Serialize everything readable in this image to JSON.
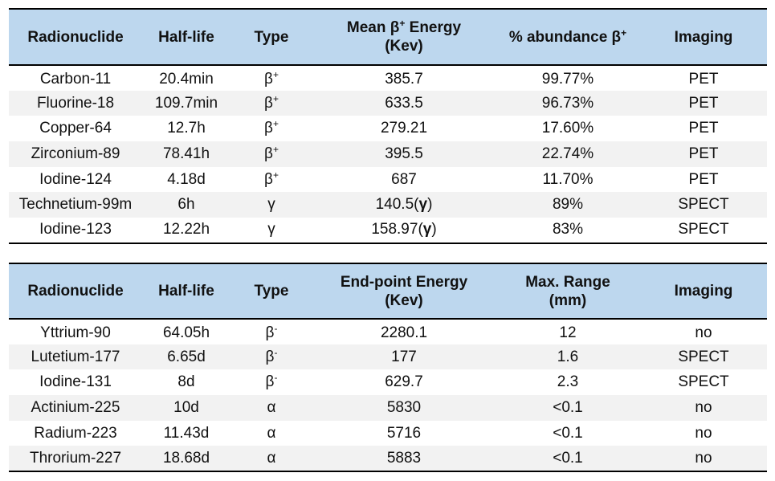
{
  "pet_table": {
    "headers": {
      "radionuclide": "Radionuclide",
      "half_life": "Half-life",
      "type": "Type",
      "energy_line1": "Mean β",
      "energy_sup": "+",
      "energy_line1_suffix": " Energy",
      "energy_line2": "(Kev)",
      "abundance": "% abundance β",
      "abundance_sup": "+",
      "imaging": "Imaging"
    },
    "rows": [
      {
        "nuclide": "Carbon-11",
        "half_life": "20.4min",
        "type": "β",
        "type_sup": "+",
        "energy": "385.7",
        "energy_suffix": "",
        "abundance": "99.77%",
        "imaging": "PET"
      },
      {
        "nuclide": "Fluorine-18",
        "half_life": "109.7min",
        "type": "β",
        "type_sup": "+",
        "energy": "633.5",
        "energy_suffix": "",
        "abundance": "96.73%",
        "imaging": "PET"
      },
      {
        "nuclide": "Copper-64",
        "half_life": "12.7h",
        "type": "β",
        "type_sup": "+",
        "energy": "279.21",
        "energy_suffix": "",
        "abundance": "17.60%",
        "imaging": "PET"
      },
      {
        "nuclide": "Zirconium-89",
        "half_life": "78.41h",
        "type": "β",
        "type_sup": "+",
        "energy": "395.5",
        "energy_suffix": "",
        "abundance": "22.74%",
        "imaging": "PET"
      },
      {
        "nuclide": "Iodine-124",
        "half_life": "4.18d",
        "type": "β",
        "type_sup": "+",
        "energy": "687",
        "energy_suffix": "",
        "abundance": "11.70%",
        "imaging": "PET"
      },
      {
        "nuclide": "Technetium-99m",
        "half_life": "6h",
        "type": "γ",
        "type_sup": "",
        "energy": "140.5",
        "energy_suffix": "γ",
        "abundance": "89%",
        "imaging": "SPECT"
      },
      {
        "nuclide": "Iodine-123",
        "half_life": "12.22h",
        "type": "γ",
        "type_sup": "",
        "energy": "158.97",
        "energy_suffix": "γ",
        "abundance": "83%",
        "imaging": "SPECT"
      }
    ]
  },
  "therapy_table": {
    "headers": {
      "radionuclide": "Radionuclide",
      "half_life": "Half-life",
      "type": "Type",
      "energy_line1": "End-point Energy",
      "energy_line2": "(Kev)",
      "range_line1": "Max. Range",
      "range_line2": "(mm)",
      "imaging": "Imaging"
    },
    "rows": [
      {
        "nuclide": "Yttrium-90",
        "half_life": "64.05h",
        "type": "β",
        "type_sup": "-",
        "energy": "2280.1",
        "range": "12",
        "imaging": "no"
      },
      {
        "nuclide": "Lutetium-177",
        "half_life": "6.65d",
        "type": "β",
        "type_sup": "-",
        "energy": "177",
        "range": "1.6",
        "imaging": "SPECT"
      },
      {
        "nuclide": "Iodine-131",
        "half_life": "8d",
        "type": "β",
        "type_sup": "-",
        "energy": "629.7",
        "range": "2.3",
        "imaging": "SPECT"
      },
      {
        "nuclide": "Actinium-225",
        "half_life": "10d",
        "type": "α",
        "type_sup": "",
        "energy": "5830",
        "range": "<0.1",
        "imaging": "no"
      },
      {
        "nuclide": "Radium-223",
        "half_life": "11.43d",
        "type": "α",
        "type_sup": "",
        "energy": "5716",
        "range": "<0.1",
        "imaging": "no"
      },
      {
        "nuclide": "Throrium-227",
        "half_life": "18.68d",
        "type": "α",
        "type_sup": "",
        "energy": "5883",
        "range": "<0.1",
        "imaging": "no"
      }
    ]
  },
  "colors": {
    "header_bg": "#bdd7ee",
    "stripe_bg": "#f2f2f2",
    "rule": "#000000"
  }
}
